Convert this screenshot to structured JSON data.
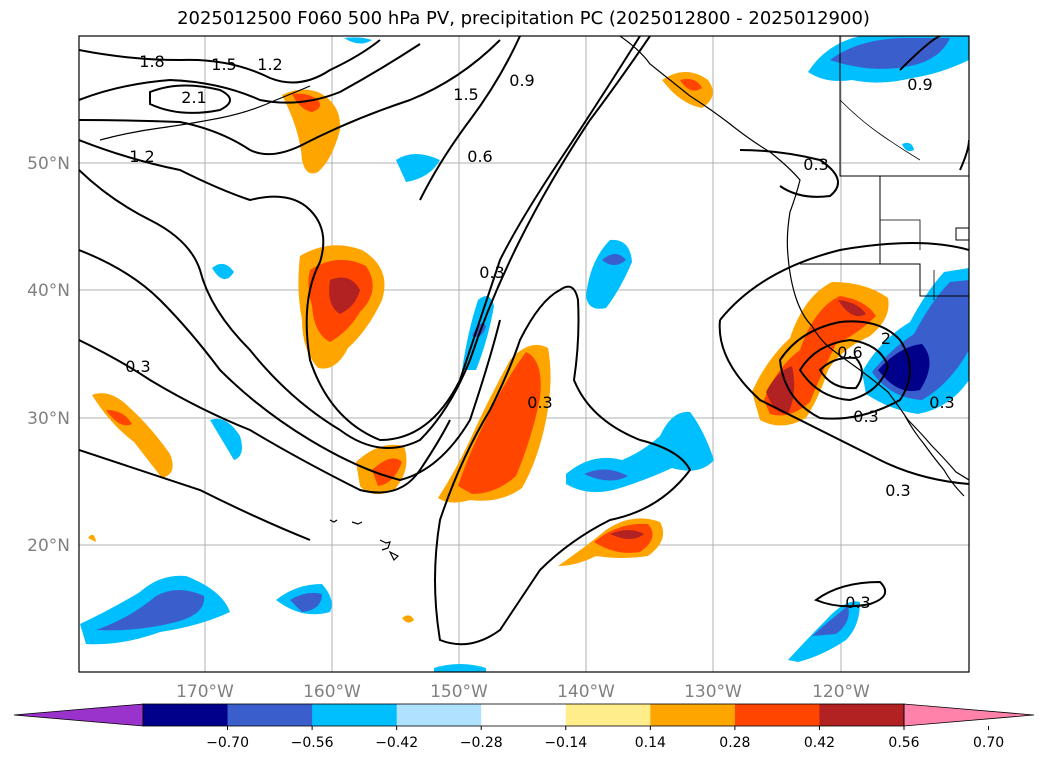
{
  "title": "2025012500 F060 500 hPa PV, precipitation PC (2025012800 - 2025012900)",
  "lat_labels": [
    "50°N",
    "40°N",
    "30°N",
    "20°N"
  ],
  "lon_labels": [
    "170°W",
    "160°W",
    "150°W",
    "140°W",
    "130°W",
    "120°W"
  ],
  "contour_labels": [
    "1.8",
    "1.5",
    "1.2",
    "2.1",
    "1.2",
    "1.5",
    "0.9",
    "0.6",
    "0.3",
    "0.3",
    "0.3",
    "0.3",
    "0.9",
    "2",
    "0.6",
    "0.3",
    "0.3",
    "0.3",
    "0.3"
  ],
  "colorbar": {
    "ticks": [
      "−0.70",
      "−0.56",
      "−0.42",
      "−0.28",
      "−0.14",
      "0.14",
      "0.28",
      "0.42",
      "0.56",
      "0.70"
    ],
    "colors": [
      "#9933cc",
      "#00008b",
      "#3a5fcd",
      "#00bfff",
      "#b0e2ff",
      "#ffffff",
      "#ffec8b",
      "#ffa500",
      "#ff4500",
      "#b22222",
      "#ff82ab"
    ]
  }
}
